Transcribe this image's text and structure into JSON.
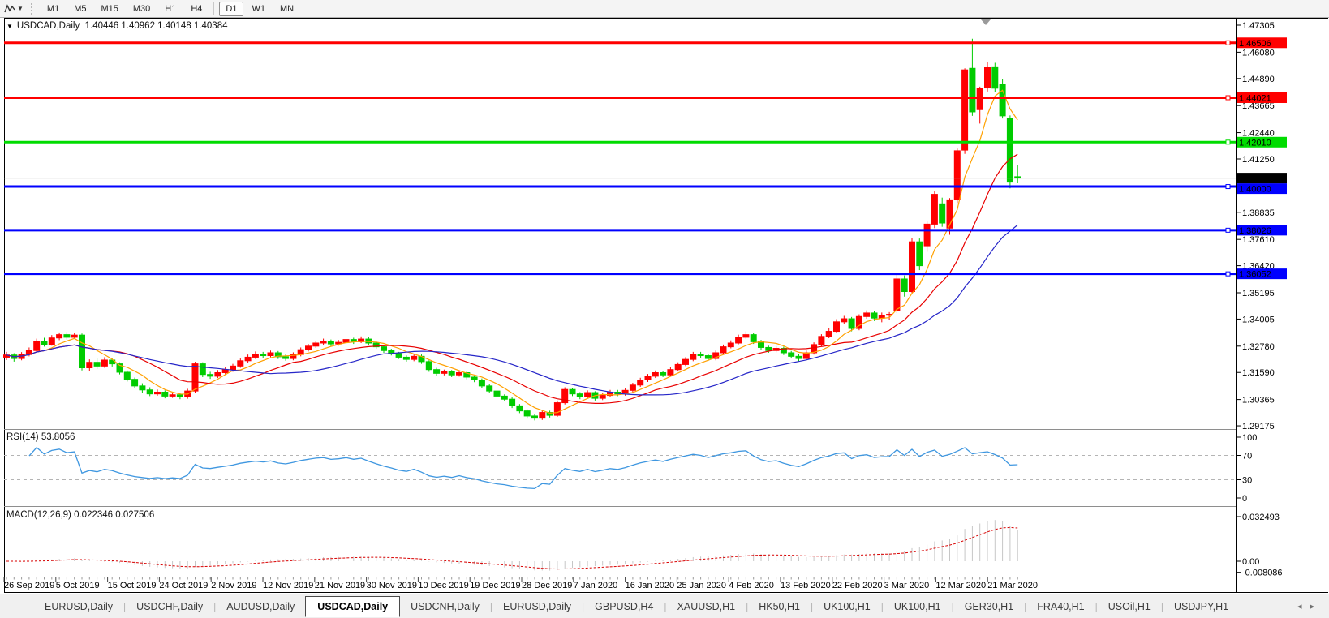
{
  "toolbar": {
    "timeframes": [
      "M1",
      "M5",
      "M15",
      "M30",
      "H1",
      "H4",
      "D1",
      "W1",
      "MN"
    ],
    "active_timeframe": "D1"
  },
  "title_bar": {
    "text": "USDCAD,Daily  1.40446 1.40962 1.40148 1.40384",
    "symbol": "USDCAD",
    "period": "Daily",
    "open": "1.40446",
    "high": "1.40962",
    "low": "1.40148",
    "close": "1.40384"
  },
  "price_axis": {
    "labels": [
      "1.47305",
      "1.46080",
      "1.44890",
      "1.43665",
      "1.42440",
      "1.41250",
      "1.38835",
      "1.37610",
      "1.36420",
      "1.35195",
      "1.34005",
      "1.32780",
      "1.31590",
      "1.30365",
      "1.29175"
    ],
    "max": 1.47305,
    "min": 1.29175
  },
  "hlines": [
    {
      "price": 1.46506,
      "label": "1.46506",
      "color": "#FF0000",
      "width": 3
    },
    {
      "price": 1.44021,
      "label": "1.44021",
      "color": "#FF0000",
      "width": 3
    },
    {
      "price": 1.4201,
      "label": "1.42010",
      "color": "#00DC00",
      "width": 3
    },
    {
      "price": 1.4,
      "label": "1.40000",
      "color": "#0000FF",
      "width": 3
    },
    {
      "price": 1.38026,
      "label": "1.38026",
      "color": "#0000FF",
      "width": 3
    },
    {
      "price": 1.36052,
      "label": "1.36052",
      "color": "#0000FF",
      "width": 3
    }
  ],
  "current_price": {
    "value": 1.40384,
    "label": "1.40384",
    "line_color": "#ADADAD",
    "label_bg": "#000000"
  },
  "chart_data": {
    "type": "candlestick",
    "title": "USDCAD,Daily",
    "x_labels": [
      "26 Sep 2019",
      "5 Oct 2019",
      "15 Oct 2019",
      "24 Oct 2019",
      "2 Nov 2019",
      "12 Nov 2019",
      "21 Nov 2019",
      "30 Nov 2019",
      "10 Dec 2019",
      "19 Dec 2019",
      "28 Dec 2019",
      "7 Jan 2020",
      "16 Jan 2020",
      "25 Jan 2020",
      "4 Feb 2020",
      "13 Feb 2020",
      "22 Feb 2020",
      "3 Mar 2020",
      "12 Mar 2020",
      "21 Mar 2020"
    ],
    "y_range": [
      1.29175,
      1.47305
    ],
    "bull_color": "#FF0000",
    "bear_color": "#00CC00",
    "moving_averages": [
      {
        "name": "fast",
        "period": 6,
        "color": "#FFA000"
      },
      {
        "name": "medium",
        "period": 14,
        "color": "#E80000"
      },
      {
        "name": "slow",
        "period": 26,
        "color": "#2626C8"
      }
    ],
    "candles": [
      [
        1.3228,
        1.3252,
        1.3215,
        1.3238
      ],
      [
        1.3238,
        1.3246,
        1.3208,
        1.3222
      ],
      [
        1.3222,
        1.3251,
        1.3214,
        1.324
      ],
      [
        1.324,
        1.3272,
        1.3232,
        1.3258
      ],
      [
        1.3258,
        1.3312,
        1.3252,
        1.33
      ],
      [
        1.33,
        1.3316,
        1.3276,
        1.3286
      ],
      [
        1.3286,
        1.3328,
        1.328,
        1.3315
      ],
      [
        1.3315,
        1.334,
        1.3305,
        1.333
      ],
      [
        1.333,
        1.3342,
        1.3308,
        1.3318
      ],
      [
        1.3318,
        1.3338,
        1.331,
        1.3328
      ],
      [
        1.3328,
        1.3335,
        1.3168,
        1.318
      ],
      [
        1.318,
        1.3218,
        1.3165,
        1.3205
      ],
      [
        1.3205,
        1.3222,
        1.3175,
        1.3188
      ],
      [
        1.3188,
        1.3228,
        1.318,
        1.3215
      ],
      [
        1.3215,
        1.3225,
        1.3186,
        1.3198
      ],
      [
        1.3198,
        1.3205,
        1.315,
        1.316
      ],
      [
        1.316,
        1.3168,
        1.3118,
        1.3128
      ],
      [
        1.3128,
        1.3136,
        1.3088,
        1.3098
      ],
      [
        1.3098,
        1.311,
        1.3068,
        1.308
      ],
      [
        1.308,
        1.3092,
        1.3052,
        1.3062
      ],
      [
        1.3062,
        1.3082,
        1.3054,
        1.307
      ],
      [
        1.307,
        1.3078,
        1.3042,
        1.3052
      ],
      [
        1.3052,
        1.307,
        1.3044,
        1.3058
      ],
      [
        1.3058,
        1.3066,
        1.3038,
        1.3048
      ],
      [
        1.3048,
        1.3085,
        1.304,
        1.3075
      ],
      [
        1.3075,
        1.3207,
        1.3068,
        1.3198
      ],
      [
        1.3198,
        1.3205,
        1.3138,
        1.315
      ],
      [
        1.315,
        1.3162,
        1.313,
        1.3142
      ],
      [
        1.3142,
        1.317,
        1.3134,
        1.3158
      ],
      [
        1.3158,
        1.3184,
        1.315,
        1.3172
      ],
      [
        1.3172,
        1.3198,
        1.3162,
        1.3188
      ],
      [
        1.3188,
        1.3222,
        1.318,
        1.3212
      ],
      [
        1.3212,
        1.324,
        1.3204,
        1.3228
      ],
      [
        1.3228,
        1.3254,
        1.322,
        1.3242
      ],
      [
        1.3242,
        1.3252,
        1.3224,
        1.3235
      ],
      [
        1.3235,
        1.3258,
        1.3228,
        1.3248
      ],
      [
        1.3248,
        1.3256,
        1.322,
        1.323
      ],
      [
        1.323,
        1.324,
        1.3212,
        1.3222
      ],
      [
        1.3222,
        1.325,
        1.3214,
        1.324
      ],
      [
        1.324,
        1.3272,
        1.3232,
        1.3262
      ],
      [
        1.3262,
        1.3288,
        1.3254,
        1.3278
      ],
      [
        1.3278,
        1.3302,
        1.327,
        1.3292
      ],
      [
        1.3292,
        1.3312,
        1.3284,
        1.33
      ],
      [
        1.33,
        1.3308,
        1.3278,
        1.3288
      ],
      [
        1.3288,
        1.3306,
        1.328,
        1.3295
      ],
      [
        1.3295,
        1.3318,
        1.3288,
        1.3308
      ],
      [
        1.3308,
        1.3316,
        1.3288,
        1.3298
      ],
      [
        1.3298,
        1.3322,
        1.3292,
        1.331
      ],
      [
        1.331,
        1.3318,
        1.3284,
        1.3292
      ],
      [
        1.3292,
        1.33,
        1.3266,
        1.3275
      ],
      [
        1.3275,
        1.3282,
        1.3248,
        1.3258
      ],
      [
        1.3258,
        1.3266,
        1.3236,
        1.3245
      ],
      [
        1.3245,
        1.3252,
        1.322,
        1.3228
      ],
      [
        1.3228,
        1.3236,
        1.3208,
        1.3218
      ],
      [
        1.3218,
        1.3242,
        1.321,
        1.3232
      ],
      [
        1.3232,
        1.324,
        1.3198,
        1.3208
      ],
      [
        1.3208,
        1.3214,
        1.3162,
        1.3172
      ],
      [
        1.3172,
        1.318,
        1.3145,
        1.3155
      ],
      [
        1.3155,
        1.3172,
        1.3146,
        1.3162
      ],
      [
        1.3162,
        1.317,
        1.3138,
        1.3148
      ],
      [
        1.3148,
        1.3168,
        1.314,
        1.3158
      ],
      [
        1.3158,
        1.3164,
        1.3128,
        1.3138
      ],
      [
        1.3138,
        1.3146,
        1.3115,
        1.3125
      ],
      [
        1.3125,
        1.3132,
        1.3088,
        1.3098
      ],
      [
        1.3098,
        1.3106,
        1.3065,
        1.3075
      ],
      [
        1.3075,
        1.3082,
        1.3042,
        1.3052
      ],
      [
        1.3052,
        1.306,
        1.3028,
        1.3038
      ],
      [
        1.3038,
        1.3046,
        1.2998,
        1.3008
      ],
      [
        1.3008,
        1.3016,
        1.2975,
        1.2985
      ],
      [
        1.2985,
        1.2992,
        1.295,
        1.2962
      ],
      [
        1.2962,
        1.2972,
        1.2942,
        1.2952
      ],
      [
        1.2952,
        1.2988,
        1.2944,
        1.2978
      ],
      [
        1.2978,
        1.2986,
        1.2955,
        1.2965
      ],
      [
        1.2965,
        1.3032,
        1.2958,
        1.3022
      ],
      [
        1.3022,
        1.3092,
        1.3014,
        1.3082
      ],
      [
        1.3082,
        1.309,
        1.3052,
        1.3062
      ],
      [
        1.3062,
        1.307,
        1.3038,
        1.3048
      ],
      [
        1.3048,
        1.3078,
        1.304,
        1.3068
      ],
      [
        1.3068,
        1.3074,
        1.3032,
        1.3042
      ],
      [
        1.3042,
        1.3066,
        1.3034,
        1.3055
      ],
      [
        1.3055,
        1.308,
        1.3046,
        1.307
      ],
      [
        1.307,
        1.308,
        1.3052,
        1.3062
      ],
      [
        1.3062,
        1.3088,
        1.3054,
        1.3078
      ],
      [
        1.3078,
        1.3112,
        1.307,
        1.3102
      ],
      [
        1.3102,
        1.3135,
        1.3094,
        1.3125
      ],
      [
        1.3125,
        1.3152,
        1.3116,
        1.3142
      ],
      [
        1.3142,
        1.3168,
        1.3134,
        1.3158
      ],
      [
        1.3158,
        1.3166,
        1.3138,
        1.3148
      ],
      [
        1.3148,
        1.3182,
        1.314,
        1.3172
      ],
      [
        1.3172,
        1.3205,
        1.3164,
        1.3195
      ],
      [
        1.3195,
        1.3228,
        1.3188,
        1.3218
      ],
      [
        1.3218,
        1.3252,
        1.321,
        1.3242
      ],
      [
        1.3242,
        1.3252,
        1.3226,
        1.3235
      ],
      [
        1.3235,
        1.3244,
        1.3212,
        1.3222
      ],
      [
        1.3222,
        1.3258,
        1.3214,
        1.3248
      ],
      [
        1.3248,
        1.3285,
        1.324,
        1.3275
      ],
      [
        1.3275,
        1.3304,
        1.3268,
        1.3292
      ],
      [
        1.3292,
        1.333,
        1.3286,
        1.3318
      ],
      [
        1.3318,
        1.3345,
        1.331,
        1.333
      ],
      [
        1.333,
        1.3338,
        1.3288,
        1.3298
      ],
      [
        1.3298,
        1.3306,
        1.3262,
        1.3272
      ],
      [
        1.3272,
        1.328,
        1.3248,
        1.3258
      ],
      [
        1.3258,
        1.3278,
        1.325,
        1.3268
      ],
      [
        1.3268,
        1.3276,
        1.3238,
        1.3248
      ],
      [
        1.3248,
        1.3256,
        1.3222,
        1.3232
      ],
      [
        1.3232,
        1.3242,
        1.321,
        1.3222
      ],
      [
        1.3222,
        1.3258,
        1.3214,
        1.3248
      ],
      [
        1.3248,
        1.3295,
        1.324,
        1.3285
      ],
      [
        1.3285,
        1.3332,
        1.3276,
        1.3322
      ],
      [
        1.3322,
        1.3358,
        1.3314,
        1.3345
      ],
      [
        1.3345,
        1.34,
        1.3338,
        1.3388
      ],
      [
        1.3388,
        1.3415,
        1.3378,
        1.3402
      ],
      [
        1.3402,
        1.341,
        1.3345,
        1.3358
      ],
      [
        1.3358,
        1.3422,
        1.335,
        1.3412
      ],
      [
        1.3412,
        1.344,
        1.3402,
        1.3428
      ],
      [
        1.3428,
        1.3436,
        1.3392,
        1.3405
      ],
      [
        1.3405,
        1.343,
        1.3386,
        1.3418
      ],
      [
        1.3418,
        1.3432,
        1.3398,
        1.3422
      ],
      [
        1.344,
        1.3605,
        1.3428,
        1.3582
      ],
      [
        1.3582,
        1.3598,
        1.3502,
        1.3525
      ],
      [
        1.3525,
        1.3768,
        1.3512,
        1.375
      ],
      [
        1.375,
        1.3765,
        1.3622,
        1.3642
      ],
      [
        1.3732,
        1.3842,
        1.3705,
        1.383
      ],
      [
        1.383,
        1.3978,
        1.3812,
        1.3965
      ],
      [
        1.3922,
        1.395,
        1.3818,
        1.3835
      ],
      [
        1.3812,
        1.3948,
        1.3782,
        1.394
      ],
      [
        1.394,
        1.4172,
        1.3925,
        1.4162
      ],
      [
        1.4165,
        1.4535,
        1.4148,
        1.4528
      ],
      [
        1.4535,
        1.4669,
        1.432,
        1.4338
      ],
      [
        1.4348,
        1.4452,
        1.4285,
        1.4446
      ],
      [
        1.4446,
        1.4565,
        1.443,
        1.4538
      ],
      [
        1.4542,
        1.456,
        1.4428,
        1.4445
      ],
      [
        1.4463,
        1.4488,
        1.4308,
        1.432
      ],
      [
        1.431,
        1.4322,
        1.3992,
        1.402
      ],
      [
        1.40446,
        1.40962,
        1.40148,
        1.40384
      ]
    ]
  },
  "rsi_pane": {
    "label_text": "RSI(14) 53.8056",
    "name": "RSI",
    "period": 14,
    "value": "53.8056",
    "levels": [
      "100",
      "70",
      "30",
      "0"
    ],
    "dashed_levels": [
      70,
      30
    ],
    "line_color": "#3F97E0"
  },
  "macd_pane": {
    "label_text": "MACD(12,26,9) 0.022346 0.027506",
    "name": "MACD",
    "params": "12,26,9",
    "macd_value": "0.022346",
    "signal_value": "0.027506",
    "axis_labels": [
      "0.032493",
      "0.00",
      "-0.008086"
    ],
    "histogram_color": "#C6C6C6",
    "signal_color": "#D80000"
  },
  "tab_bar": {
    "tabs": [
      "EURUSD,Daily",
      "USDCHF,Daily",
      "AUDUSD,Daily",
      "USDCAD,Daily",
      "USDCNH,Daily",
      "EURUSD,Daily",
      "GBPUSD,H4",
      "XAUUSD,H1",
      "HK50,H1",
      "UK100,H1",
      "UK100,H1",
      "GER30,H1",
      "FRA40,H1",
      "USOil,H1",
      "USDJPY,H1"
    ],
    "active_index": 3,
    "left_arrow": "◂",
    "right_arrow": "▸"
  }
}
